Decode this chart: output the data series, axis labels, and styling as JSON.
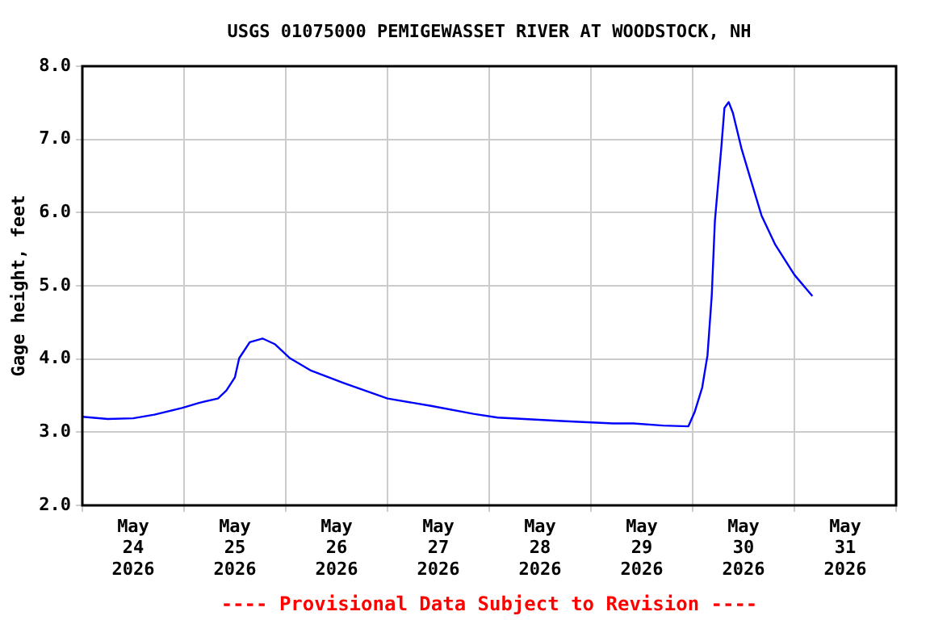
{
  "chart_data": {
    "type": "line",
    "title": "USGS 01075000 PEMIGEWASSET RIVER AT WOODSTOCK, NH",
    "ylabel": "Gage height, feet",
    "annotations": [
      "---- Provisional Data Subject to Revision ----"
    ],
    "x": [
      "2026-05-24T00:00",
      "2026-05-24T06:00",
      "2026-05-24T12:00",
      "2026-05-24T17:00",
      "2026-05-24T23:30",
      "2026-05-25T03:30",
      "2026-05-25T08:00",
      "2026-05-25T10:00",
      "2026-05-25T12:00",
      "2026-05-25T13:00",
      "2026-05-25T15:30",
      "2026-05-25T18:30",
      "2026-05-25T21:30",
      "2026-05-26T01:00",
      "2026-05-26T06:00",
      "2026-05-26T13:45",
      "2026-05-27T00:00",
      "2026-05-27T10:15",
      "2026-05-27T20:15",
      "2026-05-28T02:00",
      "2026-05-28T18:00",
      "2026-05-29T05:15",
      "2026-05-29T10:00",
      "2026-05-29T17:00",
      "2026-05-29T23:00",
      "2026-05-30T00:30",
      "2026-05-30T02:15",
      "2026-05-30T03:30",
      "2026-05-30T04:30",
      "2026-05-30T05:15",
      "2026-05-30T06:45",
      "2026-05-30T07:30",
      "2026-05-30T08:30",
      "2026-05-30T09:30",
      "2026-05-30T11:30",
      "2026-05-30T13:45",
      "2026-05-30T16:15",
      "2026-05-30T19:30",
      "2026-05-31T00:00",
      "2026-05-31T04:15"
    ],
    "series": [
      {
        "color": "#0000ff",
        "values": [
          3.21,
          3.18,
          3.19,
          3.24,
          3.33,
          3.4,
          3.46,
          3.57,
          3.75,
          4.01,
          4.23,
          4.28,
          4.2,
          4.01,
          3.84,
          3.67,
          3.46,
          3.36,
          3.25,
          3.2,
          3.15,
          3.12,
          3.12,
          3.09,
          3.08,
          3.28,
          3.61,
          4.05,
          4.86,
          5.89,
          6.88,
          7.43,
          7.51,
          7.36,
          6.88,
          6.44,
          5.96,
          5.56,
          5.15,
          4.86
        ]
      }
    ],
    "xlim": [
      "2026-05-24T00:00",
      "2026-06-01T00:00"
    ],
    "xticks": [
      {
        "value": "2026-05-24T00:00",
        "label": null
      },
      {
        "value": "2026-05-24T12:00",
        "label": "May\n24\n2026"
      },
      {
        "value": "2026-05-25T00:00",
        "label": null
      },
      {
        "value": "2026-05-25T12:00",
        "label": "May\n25\n2026"
      },
      {
        "value": "2026-05-26T00:00",
        "label": null
      },
      {
        "value": "2026-05-26T12:00",
        "label": "May\n26\n2026"
      },
      {
        "value": "2026-05-27T00:00",
        "label": null
      },
      {
        "value": "2026-05-27T12:00",
        "label": "May\n27\n2026"
      },
      {
        "value": "2026-05-28T00:00",
        "label": null
      },
      {
        "value": "2026-05-28T12:00",
        "label": "May\n28\n2026"
      },
      {
        "value": "2026-05-29T00:00",
        "label": null
      },
      {
        "value": "2026-05-29T12:00",
        "label": "May\n29\n2026"
      },
      {
        "value": "2026-05-30T00:00",
        "label": null
      },
      {
        "value": "2026-05-30T12:00",
        "label": "May\n30\n2026"
      },
      {
        "value": "2026-05-31T00:00",
        "label": null
      },
      {
        "value": "2026-05-31T12:00",
        "label": "May\n31\n2026"
      },
      {
        "value": "2026-06-01T00:00",
        "label": null
      }
    ],
    "ylim": [
      2,
      8
    ],
    "yticks": [
      {
        "value": 2,
        "label": "2.0"
      },
      {
        "value": 3,
        "label": "3.0"
      },
      {
        "value": 4,
        "label": "4.0"
      },
      {
        "value": 5,
        "label": "5.0"
      },
      {
        "value": 6,
        "label": "6.0"
      },
      {
        "value": 7,
        "label": "7.0"
      },
      {
        "value": 8,
        "label": "8.0"
      }
    ],
    "grid": true,
    "legend": false,
    "marker": "none",
    "line_style": "solid"
  }
}
